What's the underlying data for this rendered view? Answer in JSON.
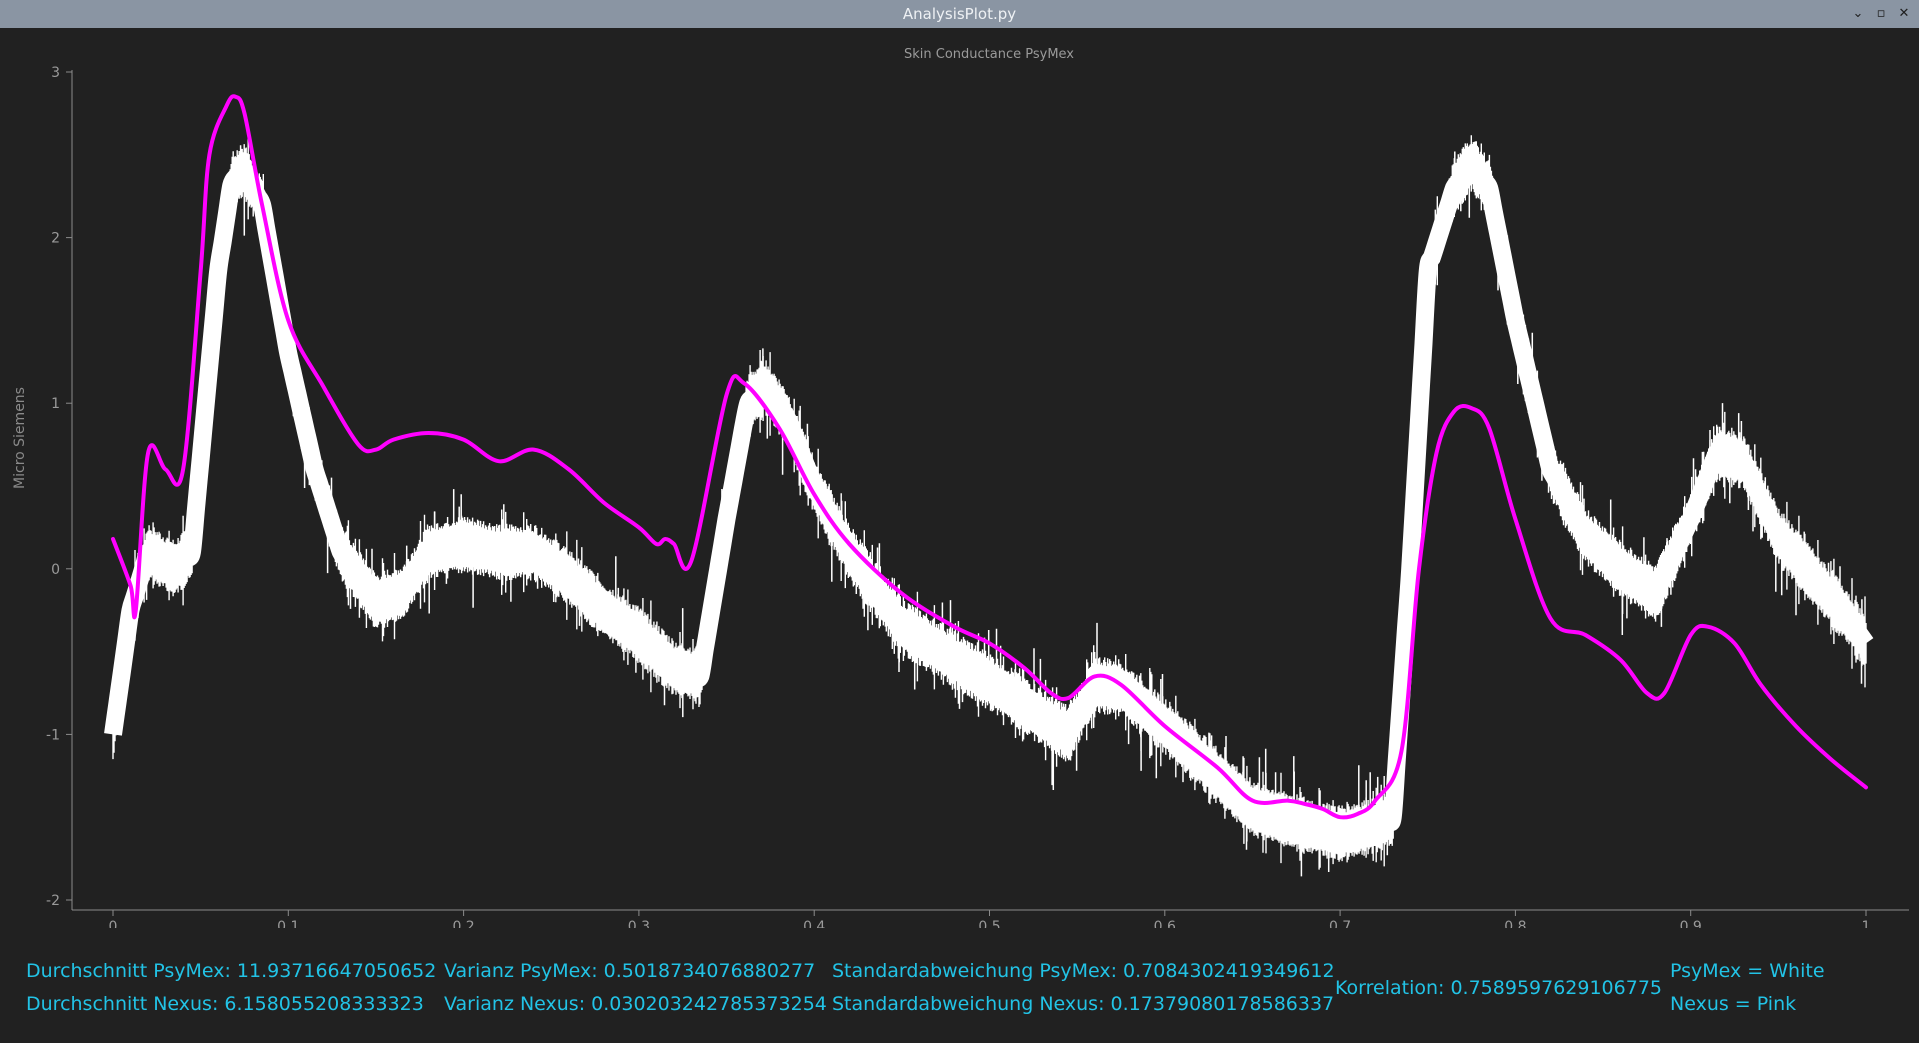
{
  "window": {
    "title": "AnalysisPlot.py",
    "controls": [
      "⌄",
      "▫",
      "✕"
    ]
  },
  "chart_data": {
    "type": "line",
    "title": "Skin Conductance PsyMex",
    "xlabel": "",
    "ylabel": "Micro Siemens",
    "xlim": [
      0,
      1
    ],
    "ylim": [
      -2,
      3
    ],
    "x_ticks": [
      "0",
      "0.1",
      "0.2",
      "0.3",
      "0.4",
      "0.5",
      "0.6",
      "0.7",
      "0.8",
      "0.9",
      "1"
    ],
    "y_ticks": [
      "3",
      "2",
      "1",
      "0",
      "-1",
      "-2"
    ],
    "grid": false,
    "series": [
      {
        "name": "PsyMex",
        "color": "#ffffff",
        "style": "noisy-band",
        "x": [
          0,
          0.01,
          0.02,
          0.035,
          0.045,
          0.06,
          0.068,
          0.075,
          0.085,
          0.1,
          0.115,
          0.13,
          0.15,
          0.165,
          0.18,
          0.2,
          0.22,
          0.24,
          0.26,
          0.28,
          0.3,
          0.32,
          0.335,
          0.35,
          0.362,
          0.372,
          0.385,
          0.4,
          0.42,
          0.45,
          0.48,
          0.51,
          0.53,
          0.545,
          0.56,
          0.575,
          0.6,
          0.63,
          0.65,
          0.68,
          0.7,
          0.72,
          0.73,
          0.74,
          0.75,
          0.765,
          0.775,
          0.785,
          0.8,
          0.82,
          0.84,
          0.86,
          0.88,
          0.9,
          0.915,
          0.93,
          0.95,
          0.97,
          0.99,
          1.0
        ],
        "y": [
          -1.0,
          -0.25,
          0.1,
          0.0,
          0.1,
          1.8,
          2.35,
          2.4,
          2.2,
          1.3,
          0.6,
          0.1,
          -0.2,
          -0.15,
          0.1,
          0.15,
          0.1,
          0.1,
          -0.05,
          -0.25,
          -0.4,
          -0.6,
          -0.65,
          0.3,
          1.0,
          1.1,
          0.9,
          0.5,
          0.1,
          -0.35,
          -0.55,
          -0.75,
          -0.9,
          -1.0,
          -0.7,
          -0.72,
          -0.95,
          -1.25,
          -1.45,
          -1.55,
          -1.6,
          -1.55,
          -1.5,
          0.0,
          1.8,
          2.3,
          2.45,
          2.3,
          1.5,
          0.6,
          0.2,
          0.0,
          -0.15,
          0.3,
          0.7,
          0.65,
          0.2,
          -0.05,
          -0.3,
          -0.45
        ]
      },
      {
        "name": "Nexus",
        "color": "#ff00ff",
        "style": "smooth",
        "x": [
          0,
          0.01,
          0.013,
          0.02,
          0.03,
          0.04,
          0.05,
          0.055,
          0.065,
          0.07,
          0.075,
          0.085,
          0.1,
          0.12,
          0.14,
          0.15,
          0.16,
          0.18,
          0.2,
          0.22,
          0.24,
          0.26,
          0.28,
          0.3,
          0.31,
          0.315,
          0.32,
          0.33,
          0.35,
          0.36,
          0.38,
          0.4,
          0.42,
          0.45,
          0.48,
          0.5,
          0.52,
          0.535,
          0.545,
          0.56,
          0.575,
          0.6,
          0.63,
          0.65,
          0.67,
          0.68,
          0.69,
          0.7,
          0.71,
          0.72,
          0.735,
          0.745,
          0.755,
          0.765,
          0.775,
          0.785,
          0.8,
          0.82,
          0.84,
          0.86,
          0.875,
          0.885,
          0.9,
          0.91,
          0.925,
          0.94,
          0.96,
          0.98,
          1.0
        ],
        "y": [
          0.18,
          -0.1,
          -0.25,
          0.7,
          0.6,
          0.6,
          1.8,
          2.5,
          2.8,
          2.85,
          2.75,
          2.2,
          1.5,
          1.1,
          0.75,
          0.72,
          0.78,
          0.82,
          0.78,
          0.65,
          0.72,
          0.6,
          0.4,
          0.25,
          0.15,
          0.18,
          0.15,
          0.05,
          1.05,
          1.12,
          0.85,
          0.45,
          0.15,
          -0.15,
          -0.35,
          -0.45,
          -0.6,
          -0.75,
          -0.78,
          -0.65,
          -0.7,
          -0.95,
          -1.2,
          -1.4,
          -1.4,
          -1.42,
          -1.45,
          -1.5,
          -1.48,
          -1.4,
          -1.1,
          0.0,
          0.7,
          0.95,
          0.97,
          0.85,
          0.3,
          -0.3,
          -0.4,
          -0.55,
          -0.75,
          -0.75,
          -0.4,
          -0.35,
          -0.45,
          -0.7,
          -0.95,
          -1.15,
          -1.32
        ]
      }
    ],
    "legend": [
      "PsyMex = White",
      "Nexus = Pink"
    ]
  },
  "stats": {
    "mean_psymex": "Durchschnitt PsyMex: 11.93716647050652",
    "mean_nexus": "Durchschnitt Nexus: 6.158055208333323",
    "var_psymex": "Varianz PsyMex: 0.5018734076880277",
    "var_nexus": "Varianz Nexus: 0.030203242785373254",
    "std_psymex": "Standardabweichung PsyMex: 0.7084302419349612",
    "std_nexus": "Standardabweichung Nexus: 0.17379080178586337",
    "correlation": "Korrelation: 0.7589597629106775",
    "legend_psymex": "PsyMex = White",
    "legend_nexus": "Nexus = Pink"
  }
}
